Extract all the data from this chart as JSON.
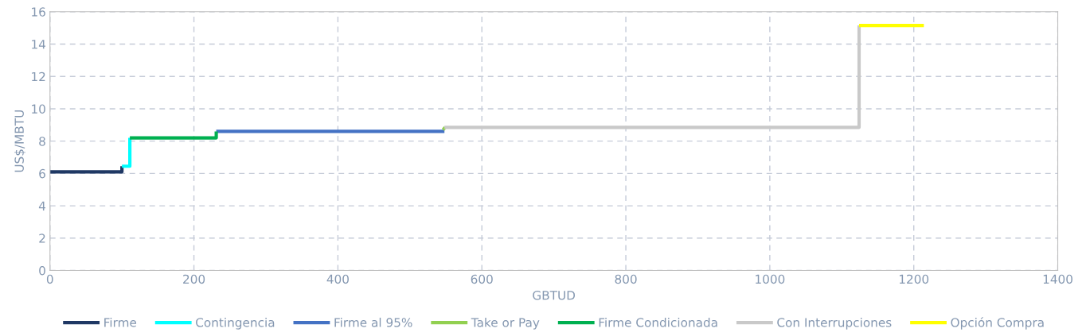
{
  "chart_data": {
    "type": "line",
    "xlabel": "GBTUD",
    "ylabel": "US$/MBTU",
    "xlim": [
      0,
      1400
    ],
    "xticks": [
      0,
      200,
      400,
      600,
      800,
      1000,
      1200,
      1400
    ],
    "ylim": [
      0,
      16
    ],
    "yticks": [
      0,
      2,
      4,
      6,
      8,
      10,
      12,
      14,
      16
    ],
    "grid": true,
    "legend": "bottom",
    "line_style": "solid",
    "marker": "none",
    "series": [
      {
        "name": "Firme",
        "color": "#1f3864",
        "x": [
          0,
          100,
          100
        ],
        "values": [
          6.1,
          6.1,
          6.45
        ]
      },
      {
        "name": "Contingencia",
        "color": "#00ffff",
        "x": [
          100,
          111,
          111
        ],
        "values": [
          6.45,
          6.45,
          8.2
        ]
      },
      {
        "name": "Firme al 95%",
        "color": "#4472c4",
        "x": [
          231,
          548
        ],
        "values": [
          8.6,
          8.6
        ]
      },
      {
        "name": "Take or Pay",
        "color": "#92d050",
        "x": [
          546,
          549
        ],
        "values": [
          8.7,
          8.85
        ]
      },
      {
        "name": "Firme Condicionada",
        "color": "#00b050",
        "x": [
          111,
          231,
          231
        ],
        "values": [
          8.2,
          8.2,
          8.6
        ]
      },
      {
        "name": "Con Interrupciones",
        "color": "#c9c9c9",
        "x": [
          548,
          1124,
          1124
        ],
        "values": [
          8.85,
          8.85,
          15.15
        ]
      },
      {
        "name": "Opción Compra",
        "color": "#ffff00",
        "x": [
          1124,
          1214
        ],
        "values": [
          15.15,
          15.15
        ]
      }
    ]
  }
}
